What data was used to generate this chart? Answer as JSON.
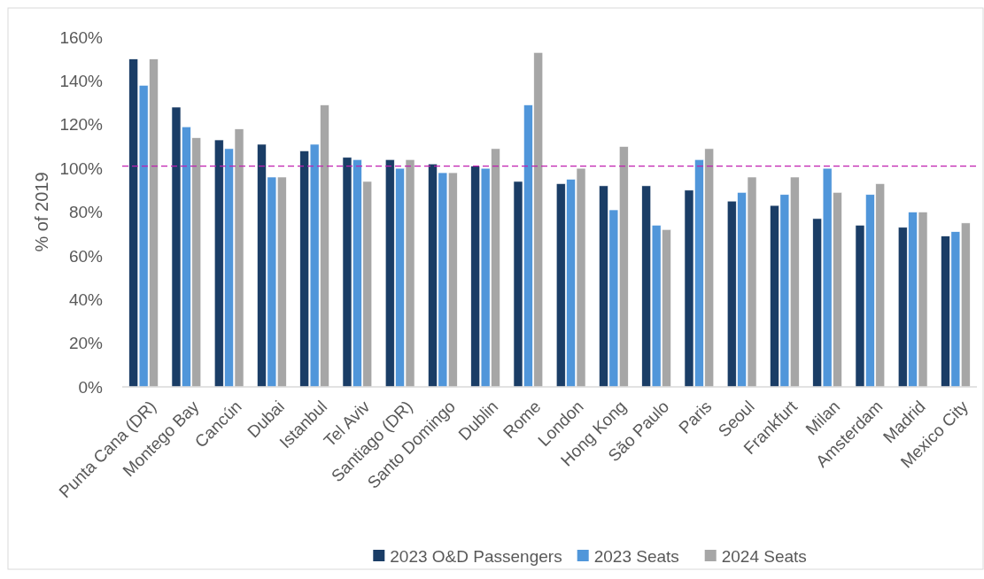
{
  "chart_data": {
    "type": "bar",
    "ylabel": "% of 2019",
    "categories": [
      "Punta Cana (DR)",
      "Montego Bay",
      "Cancún",
      "Dubai",
      "Istanbul",
      "Tel Aviv",
      "Santiago (DR)",
      "Santo Domingo",
      "Dublin",
      "Rome",
      "London",
      "Hong Kong",
      "São Paulo",
      "Paris",
      "Seoul",
      "Frankfurt",
      "Milan",
      "Amsterdam",
      "Madrid",
      "Mexico City"
    ],
    "series": [
      {
        "name": "2023 O&D Passengers",
        "color": "#1a3d66",
        "values": [
          150,
          128,
          113,
          111,
          108,
          105,
          104,
          102,
          101,
          94,
          93,
          92,
          92,
          90,
          85,
          83,
          77,
          74,
          73,
          69
        ]
      },
      {
        "name": "2023 Seats",
        "color": "#5096da",
        "values": [
          138,
          119,
          109,
          96,
          111,
          104,
          100,
          98,
          100,
          129,
          95,
          81,
          74,
          104,
          89,
          88,
          100,
          88,
          80,
          71
        ]
      },
      {
        "name": "2024 Seats",
        "color": "#a6a6a6",
        "values": [
          150,
          114,
          118,
          96,
          129,
          94,
          104,
          98,
          109,
          153,
          100,
          110,
          72,
          109,
          96,
          96,
          89,
          93,
          80,
          75
        ]
      }
    ],
    "ylim": [
      0,
      160
    ],
    "yticks": [
      {
        "value": 0,
        "label": "0%"
      },
      {
        "value": 20,
        "label": "20%"
      },
      {
        "value": 40,
        "label": "40%"
      },
      {
        "value": 60,
        "label": "60%"
      },
      {
        "value": 80,
        "label": "80%"
      },
      {
        "value": 100,
        "label": "100%"
      },
      {
        "value": 120,
        "label": "120%"
      },
      {
        "value": 140,
        "label": "140%"
      },
      {
        "value": 160,
        "label": "160%"
      }
    ],
    "ref_lines": [
      {
        "axis": "y",
        "value": 101,
        "color": "#c020b0",
        "line_style": "dashed"
      }
    ],
    "grid": false,
    "legend": "bottom"
  }
}
